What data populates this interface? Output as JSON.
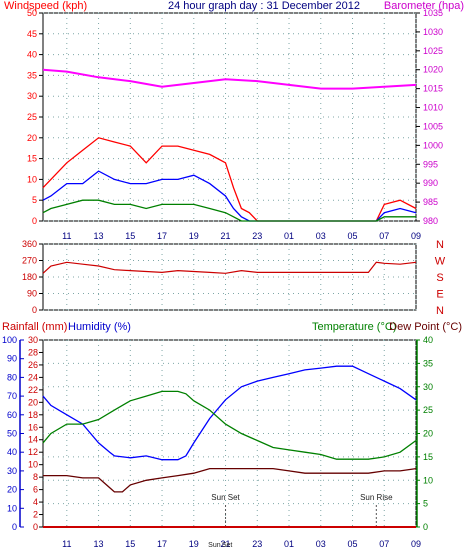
{
  "chart_data": [
    {
      "type": "line",
      "title": "24 hour graph day : 31 December 2012",
      "left_axis_label": "Windspeed (kph)",
      "right_axis_label": "Barometer (hpa)",
      "x_ticks": [
        "11",
        "13",
        "15",
        "17",
        "19",
        "21",
        "23",
        "01",
        "03",
        "05",
        "07",
        "09"
      ],
      "left_ticks": [
        "0",
        "5",
        "10",
        "15",
        "20",
        "25",
        "30",
        "35",
        "40",
        "45",
        "50"
      ],
      "right_ticks": [
        "980",
        "985",
        "990",
        "995",
        "1000",
        "1005",
        "1010",
        "1015",
        "1020",
        "1025",
        "1030",
        "1035"
      ],
      "ylim_left": [
        0,
        50
      ],
      "ylim_right": [
        980,
        1035
      ],
      "x_hours": [
        9.5,
        33
      ],
      "barometer": {
        "color": "#ff00ff",
        "x": [
          9.5,
          11,
          13,
          15,
          17,
          19,
          21,
          23,
          25,
          27,
          29,
          31,
          33
        ],
        "values": [
          1020,
          1019.5,
          1018,
          1017,
          1015.5,
          1016.5,
          1017.5,
          1017,
          1016,
          1015,
          1015,
          1015.5,
          1016
        ]
      },
      "series": [
        {
          "name": "gust",
          "color": "#ff0000",
          "x": [
            9.5,
            10,
            11,
            12,
            13,
            14,
            15,
            16,
            17,
            18,
            19,
            20,
            21,
            21.5,
            22,
            22.5,
            23,
            30.5,
            31,
            32,
            33
          ],
          "values": [
            8,
            10,
            14,
            17,
            20,
            19,
            18,
            14,
            18,
            18,
            17,
            16,
            14,
            8,
            3,
            2,
            0,
            0,
            4,
            5,
            3
          ]
        },
        {
          "name": "wind",
          "color": "#0000ff",
          "x": [
            9.5,
            10,
            11,
            12,
            13,
            14,
            15,
            16,
            17,
            18,
            19,
            20,
            21,
            21.5,
            22,
            22.5,
            23,
            30.5,
            31,
            32,
            33
          ],
          "values": [
            5,
            6,
            9,
            9,
            12,
            10,
            9,
            9,
            10,
            10,
            11,
            9,
            6,
            3,
            1,
            0,
            0,
            0,
            2,
            3,
            2
          ]
        },
        {
          "name": "average",
          "color": "#008000",
          "x": [
            9.5,
            10,
            11,
            12,
            13,
            14,
            15,
            16,
            17,
            18,
            19,
            20,
            21,
            21.5,
            22,
            22.5,
            23,
            30.5,
            31,
            32,
            33
          ],
          "values": [
            2,
            3,
            4,
            5,
            5,
            4,
            4,
            3,
            4,
            4,
            4,
            3,
            2,
            1,
            0,
            0,
            0,
            0,
            1,
            1,
            1
          ]
        }
      ]
    },
    {
      "type": "line",
      "left_ticks": [
        "360",
        "270",
        "180",
        "90",
        "0"
      ],
      "ylim": [
        0,
        360
      ],
      "compass": [
        "N",
        "W",
        "S",
        "E",
        "N"
      ],
      "x_ticks": [
        "11",
        "13",
        "15",
        "17",
        "19",
        "21",
        "23",
        "01",
        "03",
        "05",
        "07",
        "09"
      ],
      "direction": {
        "color": "#cc0000",
        "x": [
          9.5,
          10,
          10.5,
          11,
          12,
          13,
          14,
          15,
          16,
          17,
          18,
          19,
          20,
          21,
          22,
          23,
          24,
          25,
          26,
          27,
          28,
          29,
          30,
          30.5,
          31,
          32,
          33
        ],
        "values": [
          200,
          240,
          250,
          260,
          250,
          240,
          220,
          215,
          210,
          205,
          215,
          210,
          205,
          200,
          215,
          205,
          205,
          205,
          205,
          205,
          205,
          205,
          205,
          260,
          255,
          250,
          260
        ]
      }
    },
    {
      "type": "line",
      "labels": {
        "rainfall": "Rainfall (mm)",
        "humidity": "Humidity (%)",
        "temperature": "Temperature (°C)",
        "dewpoint": "Dew Point (°C)"
      },
      "humidity_ticks": [
        "0",
        "10",
        "20",
        "30",
        "40",
        "50",
        "60",
        "70",
        "80",
        "90",
        "100"
      ],
      "rain_ticks": [
        "0",
        "2",
        "4",
        "6",
        "8",
        "10",
        "12",
        "14",
        "16",
        "18",
        "20",
        "22",
        "24",
        "26",
        "28",
        "30"
      ],
      "temp_ticks": [
        "0",
        "5",
        "10",
        "15",
        "20",
        "25",
        "30",
        "35",
        "40"
      ],
      "x_ticks": [
        "11",
        "13",
        "15",
        "17",
        "19",
        "21",
        "23",
        "01",
        "03",
        "05",
        "07",
        "09"
      ],
      "ylim_humidity": [
        0,
        100
      ],
      "ylim_temp": [
        0,
        40
      ],
      "annotations": [
        {
          "text": "Sun Set",
          "hour": 21.0
        },
        {
          "text": "Sun Rise",
          "hour": 30.5
        }
      ],
      "bottom_labels": [
        "Sun",
        "Set"
      ],
      "humidity": {
        "color": "#0000ff",
        "x": [
          9.5,
          10,
          11,
          12,
          13,
          13.7,
          14,
          15,
          16,
          17,
          18,
          18.5,
          19,
          20,
          21,
          22,
          23,
          24,
          25,
          26,
          27,
          28,
          29,
          30,
          31,
          32,
          33
        ],
        "values": [
          70,
          65,
          60,
          55,
          45,
          40,
          38,
          37,
          38,
          36,
          36,
          38,
          45,
          58,
          68,
          75,
          78,
          80,
          82,
          84,
          85,
          86,
          86,
          82,
          78,
          74,
          68
        ]
      },
      "temperature": {
        "color": "#008000",
        "x": [
          9.5,
          10,
          11,
          12,
          13,
          14,
          15,
          16,
          17,
          18,
          18.5,
          19,
          20,
          21,
          22,
          23,
          24,
          25,
          26,
          27,
          28,
          29,
          30,
          31,
          32,
          33
        ],
        "values": [
          18,
          20,
          22,
          22,
          23,
          25,
          27,
          28,
          29,
          29,
          28.5,
          27,
          25,
          22,
          20,
          18.5,
          17,
          16.5,
          16,
          15.5,
          14.5,
          14.5,
          14.5,
          15,
          16,
          18.5
        ]
      },
      "dewpoint": {
        "color": "#660000",
        "x": [
          9.5,
          10,
          11,
          12,
          13,
          13.5,
          14,
          14.5,
          15,
          16,
          17,
          18,
          19,
          20,
          21,
          22,
          23,
          24,
          25,
          26,
          27,
          28,
          29,
          30,
          31,
          32,
          33
        ],
        "values": [
          11,
          11,
          11,
          10.5,
          10.5,
          9,
          7.5,
          7.5,
          9,
          10,
          10.5,
          11,
          11.5,
          12.5,
          12.5,
          12.5,
          12.5,
          12.5,
          12,
          11.5,
          11.5,
          11.5,
          11.5,
          11.5,
          12,
          12,
          12.5
        ]
      },
      "rainfall": {
        "color": "#cc0000",
        "x": [
          9.5,
          33
        ],
        "values": [
          0,
          0
        ]
      }
    }
  ]
}
